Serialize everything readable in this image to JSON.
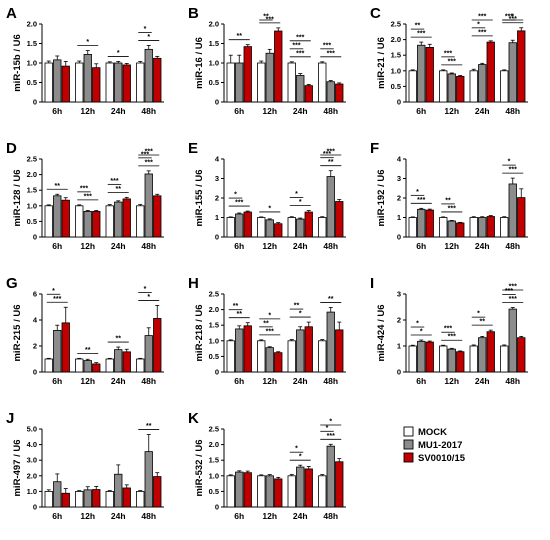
{
  "legend": {
    "series": [
      {
        "name": "MOCK",
        "color": "#ffffff"
      },
      {
        "name": "MU1-2017",
        "color": "#8c8c8c"
      },
      {
        "name": "SV0010/15",
        "color": "#c00000"
      }
    ]
  },
  "chart_data": [
    {
      "panel": "A",
      "type": "bar",
      "ylabel": "miR-15b / U6",
      "ylim": [
        0,
        2.0
      ],
      "yticks": [
        "0",
        "0.5",
        "1.0",
        "1.5",
        "2.0"
      ],
      "categories": [
        "6h",
        "12h",
        "24h",
        "48h"
      ],
      "series": [
        {
          "name": "MOCK",
          "values": [
            1.0,
            1.0,
            1.0,
            1.0
          ],
          "errors": [
            0.05,
            0.05,
            0.03,
            0.04
          ]
        },
        {
          "name": "MU1-2017",
          "values": [
            1.08,
            1.22,
            1.0,
            1.35
          ],
          "errors": [
            0.1,
            0.1,
            0.04,
            0.1
          ]
        },
        {
          "name": "SV0010/15",
          "values": [
            0.92,
            0.88,
            0.95,
            1.12
          ],
          "errors": [
            0.12,
            0.1,
            0.04,
            0.05
          ]
        }
      ],
      "sig": [
        "",
        "*",
        "*",
        "* *"
      ]
    },
    {
      "panel": "B",
      "type": "bar",
      "ylabel": "miR-16 / U6",
      "ylim": [
        0,
        2.0
      ],
      "yticks": [
        "0",
        "0.5",
        "1.0",
        "1.5",
        "2.0"
      ],
      "categories": [
        "6h",
        "12h",
        "24h",
        "48h"
      ],
      "series": [
        {
          "name": "MOCK",
          "values": [
            1.0,
            1.0,
            1.0,
            1.0
          ],
          "errors": [
            0.2,
            0.05,
            0.03,
            0.03
          ]
        },
        {
          "name": "MU1-2017",
          "values": [
            1.0,
            1.25,
            0.68,
            0.52
          ],
          "errors": [
            0.2,
            0.1,
            0.05,
            0.03
          ]
        },
        {
          "name": "SV0010/15",
          "values": [
            1.42,
            1.82,
            0.42,
            0.46
          ],
          "errors": [
            0.05,
            0.08,
            0.03,
            0.03
          ]
        }
      ],
      "sig": [
        "**",
        "*** **",
        "*** *** ***",
        "*** ***"
      ]
    },
    {
      "panel": "C",
      "type": "bar",
      "ylabel": "miR-21 / U6",
      "ylim": [
        0,
        2.5
      ],
      "yticks": [
        "0",
        "0.5",
        "1.0",
        "1.5",
        "2.0",
        "2.5"
      ],
      "categories": [
        "6h",
        "12h",
        "24h",
        "48h"
      ],
      "series": [
        {
          "name": "MOCK",
          "values": [
            1.0,
            1.0,
            1.0,
            1.0
          ],
          "errors": [
            0.03,
            0.03,
            0.05,
            0.03
          ]
        },
        {
          "name": "MU1-2017",
          "values": [
            1.82,
            0.9,
            1.2,
            1.9
          ],
          "errors": [
            0.1,
            0.03,
            0.04,
            0.08
          ]
        },
        {
          "name": "SV0010/15",
          "values": [
            1.75,
            0.82,
            1.92,
            2.28
          ],
          "errors": [
            0.1,
            0.03,
            0.04,
            0.1
          ]
        }
      ],
      "sig": [
        "*** **",
        "*** ***",
        "*** * ***",
        "*** *** *"
      ]
    },
    {
      "panel": "D",
      "type": "bar",
      "ylabel": "miR-128 / U6",
      "ylim": [
        0,
        2.5
      ],
      "yticks": [
        "0",
        "0.5",
        "1.0",
        "1.5",
        "2.0",
        "2.5"
      ],
      "categories": [
        "6h",
        "12h",
        "24h",
        "48h"
      ],
      "series": [
        {
          "name": "MOCK",
          "values": [
            1.0,
            1.0,
            1.0,
            1.0
          ],
          "errors": [
            0.03,
            0.03,
            0.04,
            0.04
          ]
        },
        {
          "name": "MU1-2017",
          "values": [
            1.32,
            0.82,
            1.12,
            2.02
          ],
          "errors": [
            0.05,
            0.03,
            0.04,
            0.1
          ]
        },
        {
          "name": "SV0010/15",
          "values": [
            1.18,
            0.82,
            1.22,
            1.32
          ],
          "errors": [
            0.08,
            0.03,
            0.05,
            0.05
          ]
        }
      ],
      "sig": [
        "**",
        "*** ***",
        "** ***",
        "*** *** ***"
      ]
    },
    {
      "panel": "E",
      "type": "bar",
      "ylabel": "miR-155 / U6",
      "ylim": [
        0,
        4
      ],
      "yticks": [
        "0",
        "1",
        "2",
        "3",
        "4"
      ],
      "categories": [
        "6h",
        "12h",
        "24h",
        "48h"
      ],
      "series": [
        {
          "name": "MOCK",
          "values": [
            1.0,
            1.0,
            1.0,
            1.0
          ],
          "errors": [
            0.03,
            0.03,
            0.04,
            0.04
          ]
        },
        {
          "name": "MU1-2017",
          "values": [
            1.18,
            0.88,
            0.92,
            3.1
          ],
          "errors": [
            0.05,
            0.05,
            0.05,
            0.3
          ]
        },
        {
          "name": "SV0010/15",
          "values": [
            1.28,
            0.68,
            1.28,
            1.82
          ],
          "errors": [
            0.05,
            0.06,
            0.08,
            0.1
          ]
        }
      ],
      "sig": [
        "*** *",
        "*",
        "* *",
        "** *** ***"
      ]
    },
    {
      "panel": "F",
      "type": "bar",
      "ylabel": "miR-192 / U6",
      "ylim": [
        0,
        4
      ],
      "yticks": [
        "0",
        "1",
        "2",
        "3",
        "4"
      ],
      "categories": [
        "6h",
        "12h",
        "24h",
        "48h"
      ],
      "series": [
        {
          "name": "MOCK",
          "values": [
            1.0,
            1.0,
            1.0,
            1.0
          ],
          "errors": [
            0.03,
            0.03,
            0.04,
            0.04
          ]
        },
        {
          "name": "MU1-2017",
          "values": [
            1.42,
            0.82,
            1.0,
            2.72
          ],
          "errors": [
            0.05,
            0.03,
            0.04,
            0.3
          ]
        },
        {
          "name": "SV0010/15",
          "values": [
            1.38,
            0.72,
            1.05,
            2.02
          ],
          "errors": [
            0.05,
            0.03,
            0.05,
            0.45
          ]
        }
      ],
      "sig": [
        "*** *",
        "*** **",
        "",
        "*** *"
      ]
    },
    {
      "panel": "G",
      "type": "bar",
      "ylabel": "miR-215 / U6",
      "ylim": [
        0,
        6
      ],
      "yticks": [
        "0",
        "2",
        "4",
        "6"
      ],
      "categories": [
        "6h",
        "12h",
        "24h",
        "48h"
      ],
      "series": [
        {
          "name": "MOCK",
          "values": [
            1.0,
            1.0,
            1.0,
            1.0
          ],
          "errors": [
            0.05,
            0.05,
            0.05,
            0.05
          ]
        },
        {
          "name": "MU1-2017",
          "values": [
            3.2,
            0.88,
            1.72,
            2.8
          ],
          "errors": [
            0.4,
            0.1,
            0.2,
            0.6
          ]
        },
        {
          "name": "SV0010/15",
          "values": [
            3.78,
            0.62,
            1.55,
            4.12
          ],
          "errors": [
            1.2,
            0.1,
            0.2,
            1.0
          ]
        }
      ],
      "sig": [
        "*** *",
        "**",
        "**",
        "* *"
      ]
    },
    {
      "panel": "H",
      "type": "bar",
      "ylabel": "miR-218 / U6",
      "ylim": [
        0,
        2.5
      ],
      "yticks": [
        "0",
        "0.5",
        "1.0",
        "1.5",
        "2.0",
        "2.5"
      ],
      "categories": [
        "6h",
        "12h",
        "24h",
        "48h"
      ],
      "series": [
        {
          "name": "MOCK",
          "values": [
            1.0,
            1.0,
            1.0,
            1.0
          ],
          "errors": [
            0.03,
            0.03,
            0.04,
            0.04
          ]
        },
        {
          "name": "MU1-2017",
          "values": [
            1.38,
            0.78,
            1.35,
            1.92
          ],
          "errors": [
            0.1,
            0.03,
            0.1,
            0.15
          ]
        },
        {
          "name": "SV0010/15",
          "values": [
            1.48,
            0.62,
            1.45,
            1.35
          ],
          "errors": [
            0.1,
            0.03,
            0.15,
            0.25
          ]
        }
      ],
      "sig": [
        "** **",
        "*** ** *",
        "* **",
        "**"
      ]
    },
    {
      "panel": "I",
      "type": "bar",
      "ylabel": "miR-424 / U6",
      "ylim": [
        0,
        3
      ],
      "yticks": [
        "0",
        "1",
        "2",
        "3"
      ],
      "categories": [
        "6h",
        "12h",
        "24h",
        "48h"
      ],
      "series": [
        {
          "name": "MOCK",
          "values": [
            1.0,
            1.0,
            1.0,
            1.0
          ],
          "errors": [
            0.03,
            0.03,
            0.04,
            0.04
          ]
        },
        {
          "name": "MU1-2017",
          "values": [
            1.18,
            0.88,
            1.32,
            2.42
          ],
          "errors": [
            0.05,
            0.03,
            0.05,
            0.06
          ]
        },
        {
          "name": "SV0010/15",
          "values": [
            1.15,
            0.78,
            1.55,
            1.32
          ],
          "errors": [
            0.04,
            0.03,
            0.06,
            0.05
          ]
        }
      ],
      "sig": [
        "* *",
        "*** ***",
        "** *",
        "*** *** ***"
      ]
    },
    {
      "panel": "J",
      "type": "bar",
      "ylabel": "miR-497 / U6",
      "ylim": [
        0,
        5
      ],
      "yticks": [
        "0",
        "1.0",
        "2.0",
        "3.0",
        "4.0",
        "5.0"
      ],
      "categories": [
        "6h",
        "12h",
        "24h",
        "48h"
      ],
      "series": [
        {
          "name": "MOCK",
          "values": [
            1.0,
            1.0,
            1.0,
            1.0
          ],
          "errors": [
            0.1,
            0.05,
            0.05,
            0.05
          ]
        },
        {
          "name": "MU1-2017",
          "values": [
            1.62,
            1.1,
            2.1,
            3.55
          ],
          "errors": [
            0.5,
            0.2,
            0.6,
            1.1
          ]
        },
        {
          "name": "SV0010/15",
          "values": [
            0.88,
            1.12,
            1.22,
            1.95
          ],
          "errors": [
            0.3,
            0.2,
            0.2,
            0.25
          ]
        }
      ],
      "sig": [
        "",
        "",
        "",
        "**"
      ]
    },
    {
      "panel": "K",
      "type": "bar",
      "ylabel": "miR-532 / U6",
      "ylim": [
        0,
        2.5
      ],
      "yticks": [
        "0",
        "0.5",
        "1.0",
        "1.5",
        "2.0",
        "2.5"
      ],
      "categories": [
        "6h",
        "12h",
        "24h",
        "48h"
      ],
      "series": [
        {
          "name": "MOCK",
          "values": [
            1.0,
            1.0,
            1.0,
            1.0
          ],
          "errors": [
            0.03,
            0.03,
            0.04,
            0.04
          ]
        },
        {
          "name": "MU1-2017",
          "values": [
            1.12,
            1.0,
            1.28,
            1.95
          ],
          "errors": [
            0.04,
            0.04,
            0.06,
            0.06
          ]
        },
        {
          "name": "SV0010/15",
          "values": [
            1.1,
            0.9,
            1.22,
            1.45
          ],
          "errors": [
            0.05,
            0.05,
            0.08,
            0.1
          ]
        }
      ],
      "sig": [
        "",
        "",
        "* *",
        "*** * *"
      ]
    }
  ]
}
